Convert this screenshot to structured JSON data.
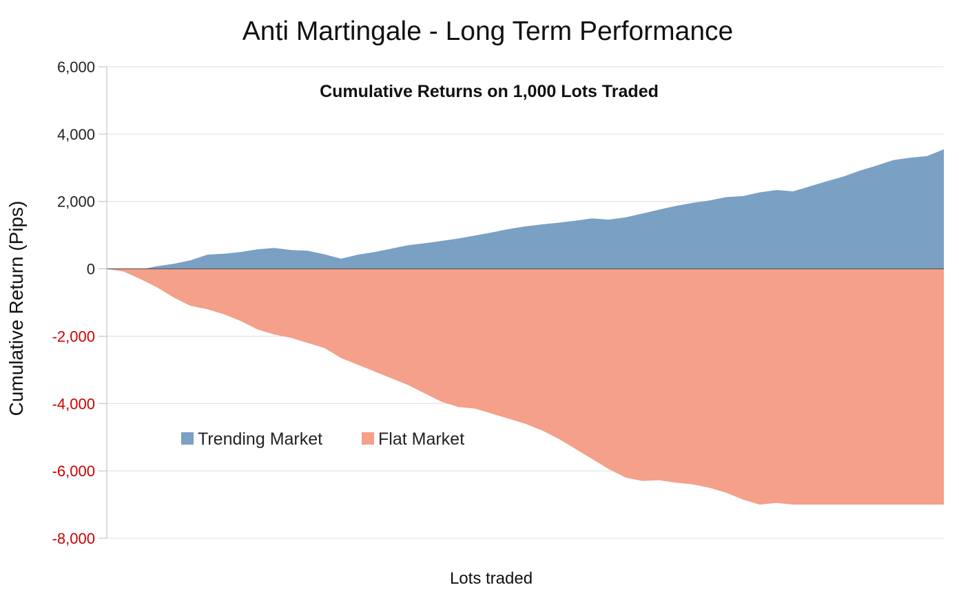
{
  "chart_data": {
    "type": "area",
    "title": "Anti Martingale - Long Term Performance",
    "subtitle": "Cumulative Returns on 1,000 Lots Traded",
    "xlabel": "Lots traded",
    "ylabel": "Cumulative Return (Pips)",
    "ylim": [
      -8000,
      6000
    ],
    "xlim": [
      0,
      1000
    ],
    "grid": true,
    "legend": "lower-left",
    "y_ticks": [
      {
        "value": 6000,
        "label": "6,000",
        "color": "#222222"
      },
      {
        "value": 4000,
        "label": "4,000",
        "color": "#222222"
      },
      {
        "value": 2000,
        "label": "2,000",
        "color": "#222222"
      },
      {
        "value": 0,
        "label": "0",
        "color": "#222222"
      },
      {
        "value": -2000,
        "label": "-2,000",
        "color": "#cc0000"
      },
      {
        "value": -4000,
        "label": "-4,000",
        "color": "#cc0000"
      },
      {
        "value": -6000,
        "label": "-6,000",
        "color": "#cc0000"
      },
      {
        "value": -8000,
        "label": "-8,000",
        "color": "#cc0000"
      }
    ],
    "x": [
      0,
      20,
      40,
      60,
      80,
      100,
      120,
      140,
      160,
      180,
      200,
      220,
      240,
      260,
      280,
      300,
      320,
      340,
      350,
      360,
      380,
      400,
      420,
      440,
      460,
      480,
      500,
      520,
      540,
      560,
      580,
      600,
      620,
      640,
      660,
      680,
      700,
      720,
      740,
      760,
      780,
      800,
      820,
      840,
      860,
      880,
      900,
      920,
      940,
      960,
      980,
      1000
    ],
    "series": [
      {
        "name": "Trending Market",
        "color": "#7aa0c4",
        "values": [
          0,
          -60,
          -20,
          80,
          150,
          250,
          420,
          450,
          500,
          580,
          620,
          560,
          540,
          430,
          300,
          420,
          500,
          600,
          650,
          700,
          760,
          830,
          900,
          990,
          1080,
          1180,
          1260,
          1320,
          1370,
          1430,
          1500,
          1460,
          1530,
          1640,
          1760,
          1870,
          1960,
          2030,
          2130,
          2160,
          2270,
          2340,
          2300,
          2450,
          2600,
          2740,
          2920,
          3070,
          3230,
          3300,
          3350,
          3550
        ]
      },
      {
        "name": "Flat Market",
        "color": "#f4a08a",
        "values": [
          0,
          -80,
          -300,
          -550,
          -850,
          -1100,
          -1200,
          -1350,
          -1550,
          -1800,
          -1950,
          -2050,
          -2200,
          -2350,
          -2650,
          -2850,
          -3050,
          -3250,
          -3350,
          -3450,
          -3700,
          -3950,
          -4100,
          -4150,
          -4300,
          -4450,
          -4600,
          -4800,
          -5050,
          -5350,
          -5650,
          -5950,
          -6200,
          -6300,
          -6280,
          -6350,
          -6400,
          -6500,
          -6650,
          -6850,
          -7000,
          -6950,
          -7000,
          -7000,
          -7000,
          -7000,
          -7000,
          -7000,
          -7000,
          -7000,
          -7000,
          -7000
        ]
      }
    ]
  }
}
